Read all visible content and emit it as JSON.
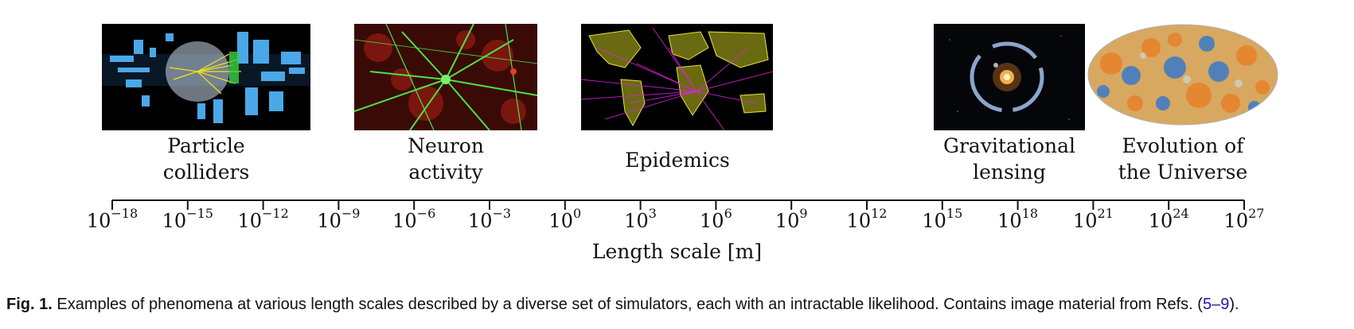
{
  "panels": [
    {
      "id": "particle",
      "line1": "Particle",
      "line2": "colliders"
    },
    {
      "id": "neuron",
      "line1": "Neuron",
      "line2": "activity"
    },
    {
      "id": "epidemics",
      "line1": "Epidemics",
      "line2": ""
    },
    {
      "id": "lensing",
      "line1": "Gravitational",
      "line2": "lensing"
    },
    {
      "id": "universe",
      "line1": "Evolution of",
      "line2": "the Universe"
    }
  ],
  "axis": {
    "title": "Length scale [m]",
    "base": "10",
    "exponents": [
      "−18",
      "−15",
      "−12",
      "−9",
      "−6",
      "−3",
      "0",
      "3",
      "6",
      "9",
      "12",
      "15",
      "18",
      "21",
      "24",
      "27"
    ]
  },
  "caption": {
    "label": "Fig. 1.",
    "text": "Examples of phenomena at various length scales described by a diverse set of simulators, each with an intractable likelihood. Contains image material from Refs. (",
    "refs": "5–9",
    "end": ")."
  },
  "colors": {
    "axis": "#111111",
    "ref_link": "#1a1aa8",
    "particle_bg": "#000000",
    "particle_blue": "#4aa8e8",
    "neuron_green": "#4ee04a",
    "neuron_red": "#8a1a10",
    "epidemics_yellow": "#e6e63a",
    "epidemics_magenta": "#e020e0",
    "lensing_ring": "#9ab8e0",
    "universe_orange": "#e8802a",
    "universe_blue": "#3a7ac8"
  }
}
